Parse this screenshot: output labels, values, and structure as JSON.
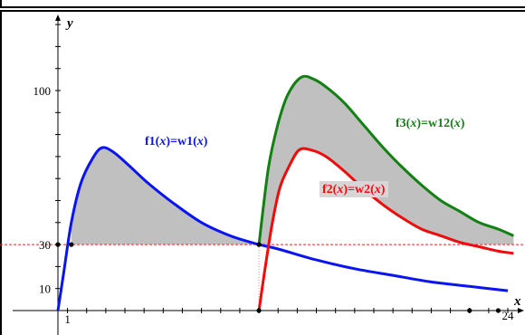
{
  "graph": {
    "x_axis_label": "x",
    "y_axis_label": "y",
    "x_tick_labels": [
      "1",
      "24"
    ],
    "y_tick_labels": [
      "10",
      "30",
      "100"
    ],
    "threshold_label": "30",
    "colors": {
      "f1": "#0a14f0",
      "f2": "#f00a0a",
      "f3": "#128012",
      "shade": "#c0c0c0",
      "threshold": "#ff2020",
      "axes": "#000000"
    }
  },
  "chart_data": {
    "type": "line",
    "title": "",
    "xlabel": "x",
    "ylabel": "y",
    "xlim": [
      0.5,
      24.3
    ],
    "ylim": [
      -2,
      140
    ],
    "threshold_y": 30,
    "series": [
      {
        "name": "f1(x)=w1(x)",
        "name_parts": [
          "f1",
          "x",
          "w1",
          "x"
        ],
        "x": [
          0.5,
          0.8,
          1.2,
          1.7,
          2.3,
          2.8,
          3.4,
          4.2,
          5.2,
          6.5,
          8.0,
          9.5,
          11.0,
          12.0,
          14.0,
          16.0,
          18.0,
          20.0,
          22.0,
          24.0
        ],
        "y": [
          0,
          17,
          40,
          58,
          69,
          74,
          72,
          66,
          58,
          49,
          40,
          34,
          30,
          28,
          23,
          19,
          16,
          13,
          11,
          9
        ]
      },
      {
        "name": "f2(x)=w2(x)",
        "name_parts": [
          "f2",
          "x",
          "w2",
          "x"
        ],
        "x": [
          11.0,
          11.3,
          11.7,
          12.1,
          12.6,
          13.1,
          13.7,
          14.5,
          15.5,
          16.5,
          17.5,
          18.5,
          19.5,
          20.5,
          21.5,
          22.5,
          23.5,
          24.3
        ],
        "y": [
          0,
          18,
          40,
          56,
          66,
          73,
          73,
          70,
          63,
          55,
          48,
          42,
          37,
          34,
          31,
          29,
          27,
          26
        ]
      },
      {
        "name": "f3(x)=w12(x)",
        "name_parts": [
          "f3",
          "x",
          "w12",
          "x"
        ],
        "x": [
          11.0,
          11.5,
          12.0,
          12.5,
          13.2,
          13.9,
          14.6,
          15.5,
          16.5,
          17.5,
          18.5,
          19.5,
          20.5,
          21.5,
          22.5,
          23.5,
          24.3
        ],
        "y": [
          30,
          65,
          85,
          98,
          106,
          105,
          101,
          94,
          84,
          74,
          65,
          57,
          50,
          45,
          40,
          37,
          34
        ]
      }
    ]
  }
}
